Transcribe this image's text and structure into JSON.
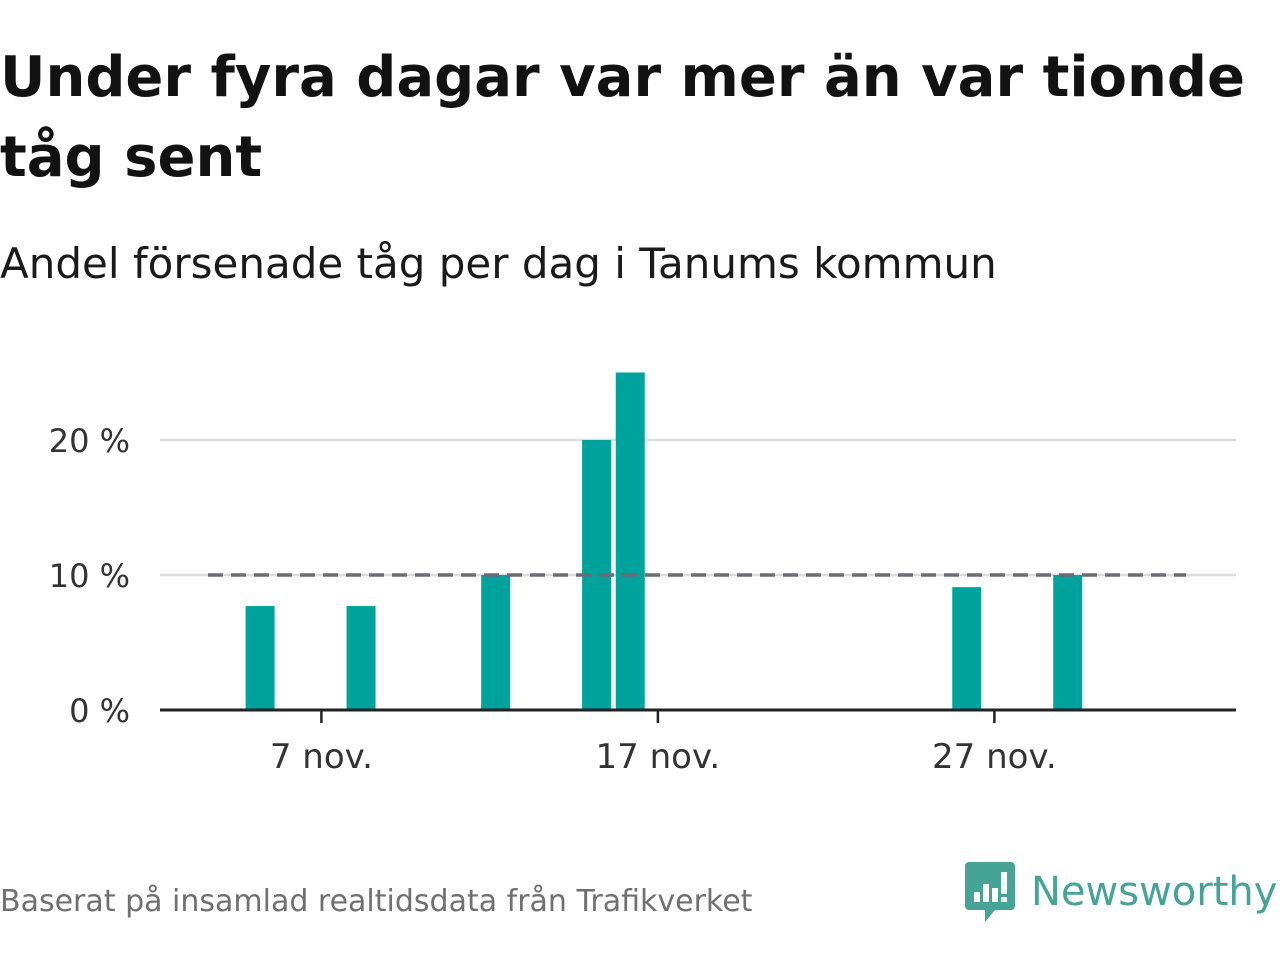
{
  "header": {
    "title": "Under fyra dagar var mer än var tionde tåg sent",
    "subtitle": "Andel försenade tåg per dag i Tanums kommun"
  },
  "footer": {
    "source": "Baserat på insamlad realtidsdata från Trafikverket",
    "brand": "Newsworthy",
    "brand_icon": "bar-chart-speech-bubble-icon"
  },
  "colors": {
    "bar": "#00a39b",
    "reference_line": "#6b6b73",
    "grid": "#dddddd",
    "axis": "#222222",
    "brand": "#46a497"
  },
  "chart_data": {
    "type": "bar",
    "x_unit": "date",
    "x": [
      "2023-11-01",
      "2023-11-02",
      "2023-11-03",
      "2023-11-04",
      "2023-11-05",
      "2023-11-06",
      "2023-11-07",
      "2023-11-08",
      "2023-11-09",
      "2023-11-10",
      "2023-11-11",
      "2023-11-12",
      "2023-11-13",
      "2023-11-14",
      "2023-11-15",
      "2023-11-16",
      "2023-11-17",
      "2023-11-18",
      "2023-11-19",
      "2023-11-20",
      "2023-11-21",
      "2023-11-22",
      "2023-11-23",
      "2023-11-24",
      "2023-11-25",
      "2023-11-26",
      "2023-11-27",
      "2023-11-28",
      "2023-11-29",
      "2023-11-30"
    ],
    "values": [
      0,
      0,
      0,
      0,
      7.7,
      0,
      0,
      7.7,
      0,
      0,
      0,
      10,
      0,
      0,
      20,
      25,
      0,
      0,
      0,
      0,
      0,
      0,
      0,
      0,
      0,
      9.1,
      0,
      0,
      10,
      0
    ],
    "x_ticks": [
      {
        "x": "2023-11-07",
        "label": "7 nov."
      },
      {
        "x": "2023-11-17",
        "label": "17 nov."
      },
      {
        "x": "2023-11-27",
        "label": "27 nov."
      }
    ],
    "y_ticks": [
      {
        "value": 0,
        "label": "0 %"
      },
      {
        "value": 10,
        "label": "10 %"
      },
      {
        "value": 20,
        "label": "20 %"
      }
    ],
    "ylim": [
      0,
      26
    ],
    "reference_line": {
      "value": 10,
      "style": "dashed"
    },
    "grid": true,
    "title": "Under fyra dagar var mer än var tionde tåg sent",
    "subtitle": "Andel försenade tåg per dag i Tanums kommun",
    "xlabel": "",
    "ylabel": ""
  }
}
